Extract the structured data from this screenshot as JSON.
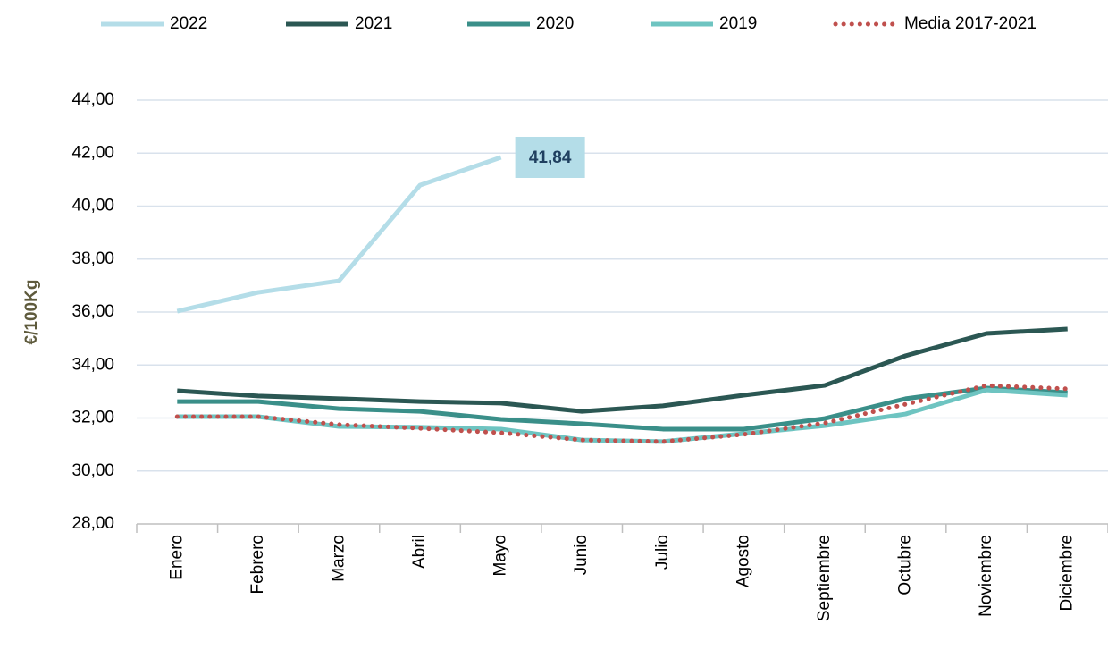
{
  "chart_data": {
    "type": "line",
    "y_label": "€/100Kg",
    "categories": [
      "Enero",
      "Febrero",
      "Marzo",
      "Abril",
      "Mayo",
      "Junio",
      "Julio",
      "Agosto",
      "Septiembre",
      "Octubre",
      "Noviembre",
      "Diciembre"
    ],
    "series": [
      {
        "name": "2022",
        "color": "#b4dde8",
        "values": [
          36.03,
          36.74,
          37.18,
          40.79,
          41.84,
          null,
          null,
          null,
          null,
          null,
          null,
          null
        ],
        "value_labels": [
          null,
          null,
          null,
          null,
          "41,84",
          null,
          null,
          null,
          null,
          null,
          null,
          null
        ]
      },
      {
        "name": "2021",
        "color": "#2b5753",
        "values": [
          33.03,
          32.83,
          32.73,
          32.62,
          32.56,
          32.25,
          32.46,
          32.86,
          33.23,
          34.35,
          35.19,
          35.36
        ]
      },
      {
        "name": "2020",
        "color": "#3a8f89",
        "values": [
          32.62,
          32.62,
          32.35,
          32.25,
          31.95,
          31.78,
          31.58,
          31.58,
          31.98,
          32.73,
          33.13,
          32.96
        ]
      },
      {
        "name": "2019",
        "color": "#6ec4c1",
        "values": [
          32.05,
          32.05,
          31.68,
          31.65,
          31.58,
          31.17,
          31.11,
          31.41,
          31.71,
          32.15,
          33.06,
          32.86
        ]
      },
      {
        "name": "Media 2017-2021",
        "color": "#c0504d",
        "style": "dotted",
        "values": [
          32.05,
          32.05,
          31.75,
          31.61,
          31.44,
          31.17,
          31.11,
          31.38,
          31.81,
          32.52,
          33.23,
          33.1
        ]
      }
    ],
    "ylim": [
      28,
      44
    ],
    "yticks": [
      {
        "value": 28,
        "label": "28,00"
      },
      {
        "value": 30,
        "label": "30,00"
      },
      {
        "value": 32,
        "label": "32,00"
      },
      {
        "value": 34,
        "label": "34,00"
      },
      {
        "value": 36,
        "label": "36,00"
      },
      {
        "value": 38,
        "label": "38,00"
      },
      {
        "value": 40,
        "label": "40,00"
      },
      {
        "value": 42,
        "label": "42,00"
      },
      {
        "value": 44,
        "label": "44,00"
      }
    ],
    "grid": true,
    "legend": "top"
  }
}
